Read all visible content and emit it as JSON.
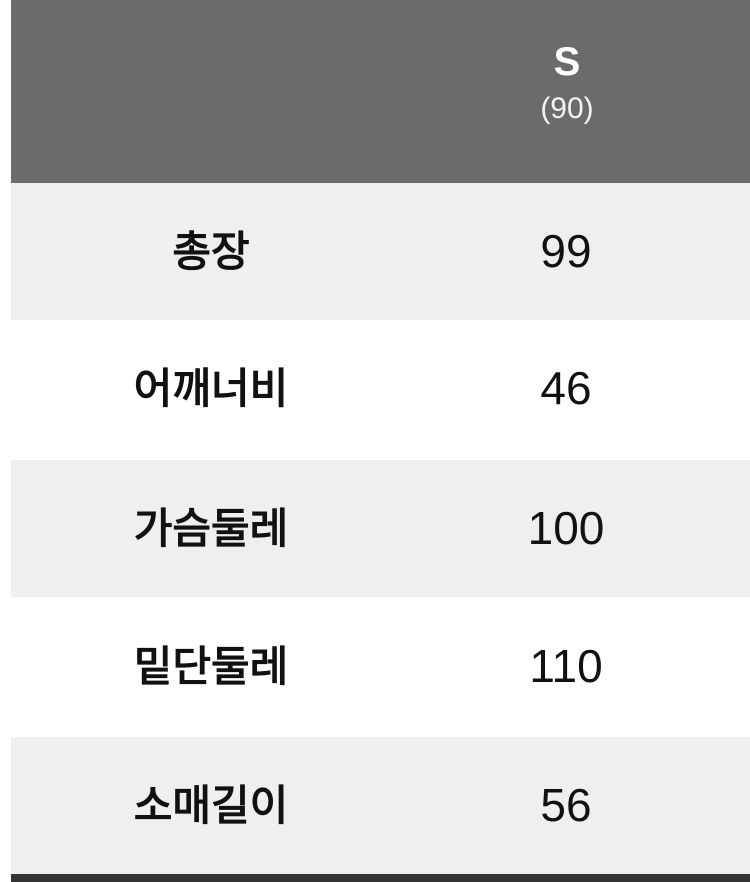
{
  "header": {
    "size": "S",
    "size_sub": "(90)"
  },
  "rows": [
    {
      "label": "총장",
      "value": "99"
    },
    {
      "label": "어깨너비",
      "value": "46"
    },
    {
      "label": "가슴둘레",
      "value": "100"
    },
    {
      "label": "밑단둘레",
      "value": "110"
    },
    {
      "label": "소매길이",
      "value": "56"
    }
  ],
  "colors": {
    "header_bg": "#6b6b6b",
    "row_alt_bg": "#efefef",
    "row_bg": "#ffffff",
    "bottom_border": "#333333"
  }
}
